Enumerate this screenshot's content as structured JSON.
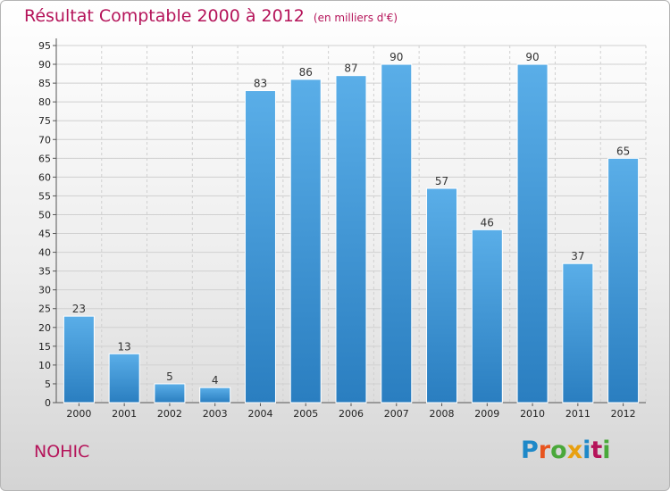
{
  "chart_data": {
    "type": "bar",
    "title": "Résultat Comptable 2000 à 2012",
    "subtitle": "(en milliers d'€)",
    "categories": [
      "2000",
      "2001",
      "2002",
      "2003",
      "2004",
      "2005",
      "2006",
      "2007",
      "2008",
      "2009",
      "2010",
      "2011",
      "2012"
    ],
    "values": [
      23,
      13,
      5,
      4,
      83,
      86,
      87,
      90,
      57,
      46,
      90,
      37,
      65
    ],
    "xlabel": "",
    "ylabel": "",
    "ylim": [
      0,
      95
    ],
    "yticks": [
      0,
      5,
      10,
      15,
      20,
      25,
      30,
      35,
      40,
      45,
      50,
      55,
      60,
      65,
      70,
      75,
      80,
      85,
      90,
      95
    ],
    "grid": true,
    "bar_color_top": "#5aaee8",
    "bar_color_bottom": "#2a7ec0"
  },
  "footer": {
    "commune": "NOHIC",
    "logo_letters": [
      {
        "char": "P",
        "color": "#1e88c8"
      },
      {
        "char": "r",
        "color": "#e8541e"
      },
      {
        "char": "o",
        "color": "#4aa83a"
      },
      {
        "char": "x",
        "color": "#e8a010"
      },
      {
        "char": "i",
        "color": "#1e88c8"
      },
      {
        "char": "t",
        "color": "#b5145a"
      },
      {
        "char": "i",
        "color": "#4aa83a"
      }
    ]
  },
  "colors": {
    "title": "#b5145a",
    "grid": "#d0d0d0"
  }
}
